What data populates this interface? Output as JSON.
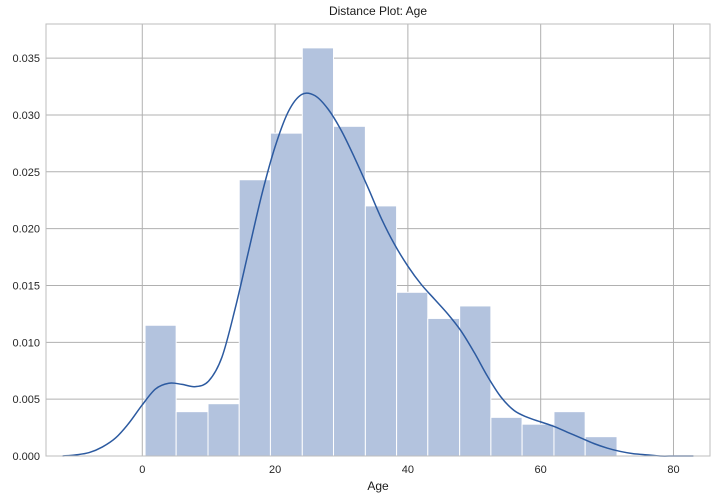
{
  "chart_data": {
    "type": "histogram",
    "title": "Distance Plot: Age",
    "xlabel": "Age",
    "ylabel": "",
    "xlim": [
      -14.5,
      85.5
    ],
    "ylim": [
      0,
      0.038
    ],
    "grid": true,
    "x_ticks": [
      0,
      20,
      40,
      60,
      80
    ],
    "y_ticks": [
      0.0,
      0.005,
      0.01,
      0.015,
      0.02,
      0.025,
      0.03,
      0.035
    ],
    "x_tick_labels": [
      "0",
      "20",
      "40",
      "60",
      "80"
    ],
    "y_tick_labels": [
      "0.000",
      "0.005",
      "0.010",
      "0.015",
      "0.020",
      "0.025",
      "0.030",
      "0.035"
    ],
    "bins": [
      {
        "x0": 0.42,
        "x1": 5.1,
        "density": 0.0115
      },
      {
        "x0": 5.1,
        "x1": 9.9,
        "density": 0.0039
      },
      {
        "x0": 9.9,
        "x1": 14.6,
        "density": 0.0046
      },
      {
        "x0": 14.6,
        "x1": 19.3,
        "density": 0.0243
      },
      {
        "x0": 19.3,
        "x1": 24.1,
        "density": 0.0284
      },
      {
        "x0": 24.1,
        "x1": 28.8,
        "density": 0.0359
      },
      {
        "x0": 28.8,
        "x1": 33.6,
        "density": 0.029
      },
      {
        "x0": 33.6,
        "x1": 38.3,
        "density": 0.022
      },
      {
        "x0": 38.3,
        "x1": 43.0,
        "density": 0.0144
      },
      {
        "x0": 43.0,
        "x1": 47.8,
        "density": 0.0121
      },
      {
        "x0": 47.8,
        "x1": 52.5,
        "density": 0.0132
      },
      {
        "x0": 52.5,
        "x1": 57.2,
        "density": 0.0034
      },
      {
        "x0": 57.2,
        "x1": 62.0,
        "density": 0.0028
      },
      {
        "x0": 62.0,
        "x1": 66.7,
        "density": 0.0039
      },
      {
        "x0": 66.7,
        "x1": 71.5,
        "density": 0.0017
      }
    ],
    "kde": {
      "x": [
        -12,
        -10,
        -8,
        -6,
        -4,
        -2,
        0,
        2,
        4,
        6,
        8,
        10,
        12,
        14,
        16,
        18,
        20,
        22,
        24,
        26,
        28,
        30,
        32,
        34,
        36,
        38,
        40,
        42,
        44,
        46,
        48,
        50,
        52,
        54,
        56,
        58,
        60,
        62,
        64,
        66,
        68,
        70,
        72,
        74,
        76,
        78,
        80,
        82,
        83
      ],
      "y": [
        0.0,
        0.0001,
        0.0003,
        0.0008,
        0.0016,
        0.0029,
        0.0045,
        0.0059,
        0.0064,
        0.0063,
        0.0061,
        0.0066,
        0.0087,
        0.013,
        0.018,
        0.023,
        0.0272,
        0.0303,
        0.0318,
        0.0317,
        0.0305,
        0.0286,
        0.0262,
        0.0236,
        0.0209,
        0.0186,
        0.0167,
        0.0151,
        0.0138,
        0.0125,
        0.011,
        0.0091,
        0.007,
        0.0052,
        0.004,
        0.0034,
        0.003,
        0.0026,
        0.0021,
        0.0016,
        0.0011,
        0.0007,
        0.0004,
        0.0002,
        0.0001,
        0.0,
        0.0,
        0.0,
        0.0
      ]
    },
    "colors": {
      "bar_fill": "#b3c3de",
      "bar_stroke": "#ffffff",
      "kde_line": "#2c5aa0",
      "grid": "#b0b0b0",
      "spine": "#bdbdbd"
    }
  }
}
